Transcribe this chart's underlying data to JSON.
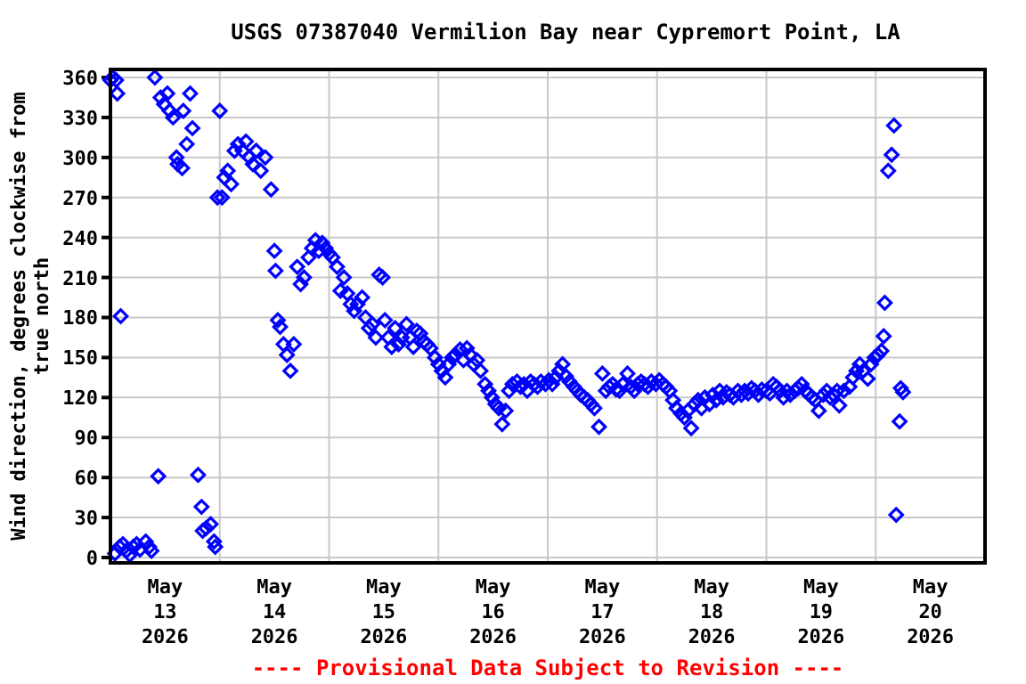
{
  "chart_data": {
    "type": "scatter",
    "title": "USGS 07387040 Vermilion Bay near Cypremort Point, LA",
    "ylabel": "Wind direction, degrees clockwise from\ntrue north",
    "annotations": [
      "---- Provisional Data Subject to Revision ----"
    ],
    "marker": "diamond",
    "grid": true,
    "ylim": [
      -4,
      366
    ],
    "yticks": [
      0,
      30,
      60,
      90,
      120,
      150,
      180,
      210,
      240,
      270,
      300,
      330,
      360
    ],
    "xlim": [
      "2026-05-13T00:00",
      "2026-05-21T00:00"
    ],
    "xticks": [
      {
        "value": "2026-05-13T12:00",
        "label": "May\n13\n2026"
      },
      {
        "value": "2026-05-14T12:00",
        "label": "May\n14\n2026"
      },
      {
        "value": "2026-05-15T12:00",
        "label": "May\n15\n2026"
      },
      {
        "value": "2026-05-16T12:00",
        "label": "May\n16\n2026"
      },
      {
        "value": "2026-05-17T12:00",
        "label": "May\n17\n2026"
      },
      {
        "value": "2026-05-18T12:00",
        "label": "May\n18\n2026"
      },
      {
        "value": "2026-05-19T12:00",
        "label": "May\n19\n2026"
      },
      {
        "value": "2026-05-20T12:00",
        "label": "May\n20\n2026"
      },
      {
        "value": "2026-05-14T00:00",
        "label": null
      },
      {
        "value": "2026-05-15T00:00",
        "label": null
      },
      {
        "value": "2026-05-16T00:00",
        "label": null
      },
      {
        "value": "2026-05-17T00:00",
        "label": null
      },
      {
        "value": "2026-05-18T00:00",
        "label": null
      },
      {
        "value": "2026-05-19T00:00",
        "label": null
      },
      {
        "value": "2026-05-20T00:00",
        "label": null
      }
    ],
    "series": [
      {
        "color": "#0000ff",
        "x": [
          "2026-05-13T00:00",
          "2026-05-13T00:30",
          "2026-05-13T01:15",
          "2026-05-13T01:30",
          "2026-05-13T02:15",
          "2026-05-13T01:00",
          "2026-05-13T02:00",
          "2026-05-13T02:45",
          "2026-05-13T03:30",
          "2026-05-13T04:15",
          "2026-05-13T05:00",
          "2026-05-13T05:45",
          "2026-05-13T06:30",
          "2026-05-13T07:45",
          "2026-05-13T08:30",
          "2026-05-13T09:00",
          "2026-05-13T09:45",
          "2026-05-13T10:30",
          "2026-05-13T11:00",
          "2026-05-13T11:45",
          "2026-05-13T12:30",
          "2026-05-13T13:00",
          "2026-05-13T13:45",
          "2026-05-13T14:30",
          "2026-05-13T14:45",
          "2026-05-13T15:45",
          "2026-05-13T16:00",
          "2026-05-13T16:45",
          "2026-05-13T17:30",
          "2026-05-13T18:00",
          "2026-05-13T19:15",
          "2026-05-13T20:00",
          "2026-05-13T20:15",
          "2026-05-13T21:00",
          "2026-05-13T22:00",
          "2026-05-13T22:45",
          "2026-05-13T23:00",
          "2026-05-13T23:30",
          "2026-05-14T00:00",
          "2026-05-14T00:30",
          "2026-05-14T01:00",
          "2026-05-14T01:45",
          "2026-05-14T02:30",
          "2026-05-14T03:15",
          "2026-05-14T04:00",
          "2026-05-14T05:00",
          "2026-05-14T05:45",
          "2026-05-14T06:30",
          "2026-05-14T07:15",
          "2026-05-14T08:00",
          "2026-05-14T09:00",
          "2026-05-14T10:00",
          "2026-05-14T11:15",
          "2026-05-14T12:00",
          "2026-05-14T12:15",
          "2026-05-14T12:45",
          "2026-05-14T13:15",
          "2026-05-14T14:00",
          "2026-05-14T14:45",
          "2026-05-14T15:30",
          "2026-05-14T16:15",
          "2026-05-14T17:00",
          "2026-05-14T17:45",
          "2026-05-14T18:30",
          "2026-05-14T19:30",
          "2026-05-14T20:15",
          "2026-05-14T21:00",
          "2026-05-14T21:45",
          "2026-05-14T22:30",
          "2026-05-14T23:15",
          "2026-05-15T00:00",
          "2026-05-15T00:45",
          "2026-05-15T01:45",
          "2026-05-15T02:30",
          "2026-05-15T03:15",
          "2026-05-15T04:00",
          "2026-05-15T04:45",
          "2026-05-15T05:30",
          "2026-05-15T06:15",
          "2026-05-15T07:15",
          "2026-05-15T08:00",
          "2026-05-15T08:45",
          "2026-05-15T09:30",
          "2026-05-15T10:15",
          "2026-05-15T11:00",
          "2026-05-15T11:45",
          "2026-05-15T12:15",
          "2026-05-15T13:00",
          "2026-05-15T13:45",
          "2026-05-15T14:30",
          "2026-05-15T15:15",
          "2026-05-15T16:00",
          "2026-05-15T17:00",
          "2026-05-15T17:45",
          "2026-05-15T18:30",
          "2026-05-15T19:15",
          "2026-05-15T20:00",
          "2026-05-15T20:45",
          "2026-05-15T21:30",
          "2026-05-15T22:15",
          "2026-05-15T23:15",
          "2026-05-16T00:00",
          "2026-05-16T00:45",
          "2026-05-16T01:30",
          "2026-05-16T02:15",
          "2026-05-16T03:00",
          "2026-05-16T03:45",
          "2026-05-16T04:45",
          "2026-05-16T05:30",
          "2026-05-16T06:15",
          "2026-05-16T07:00",
          "2026-05-16T07:45",
          "2026-05-16T08:30",
          "2026-05-16T09:15",
          "2026-05-16T10:15",
          "2026-05-16T11:00",
          "2026-05-16T11:45",
          "2026-05-16T12:30",
          "2026-05-16T13:15",
          "2026-05-16T14:00",
          "2026-05-16T14:45",
          "2026-05-16T15:30",
          "2026-05-16T16:15",
          "2026-05-16T17:15",
          "2026-05-16T18:00",
          "2026-05-16T18:45",
          "2026-05-16T19:30",
          "2026-05-16T20:15",
          "2026-05-16T21:00",
          "2026-05-16T21:45",
          "2026-05-16T22:30",
          "2026-05-16T23:30",
          "2026-05-17T00:15",
          "2026-05-17T01:00",
          "2026-05-17T01:45",
          "2026-05-17T02:30",
          "2026-05-17T03:15",
          "2026-05-17T04:00",
          "2026-05-17T04:45",
          "2026-05-17T05:45",
          "2026-05-17T06:30",
          "2026-05-17T07:15",
          "2026-05-17T08:00",
          "2026-05-17T08:45",
          "2026-05-17T09:30",
          "2026-05-17T10:15",
          "2026-05-17T11:15",
          "2026-05-17T12:00",
          "2026-05-17T12:45",
          "2026-05-17T13:30",
          "2026-05-17T14:15",
          "2026-05-17T15:00",
          "2026-05-17T15:45",
          "2026-05-17T16:30",
          "2026-05-17T17:30",
          "2026-05-17T18:15",
          "2026-05-17T19:00",
          "2026-05-17T19:45",
          "2026-05-17T20:30",
          "2026-05-17T21:15",
          "2026-05-17T22:00",
          "2026-05-17T22:45",
          "2026-05-17T23:45",
          "2026-05-18T00:30",
          "2026-05-18T01:15",
          "2026-05-18T02:00",
          "2026-05-18T02:45",
          "2026-05-18T03:30",
          "2026-05-18T04:15",
          "2026-05-18T05:15",
          "2026-05-18T06:00",
          "2026-05-18T06:45",
          "2026-05-18T07:30",
          "2026-05-18T08:15",
          "2026-05-18T09:00",
          "2026-05-18T09:45",
          "2026-05-18T10:30",
          "2026-05-18T11:30",
          "2026-05-18T12:15",
          "2026-05-18T13:00",
          "2026-05-18T13:45",
          "2026-05-18T14:30",
          "2026-05-18T15:15",
          "2026-05-18T16:00",
          "2026-05-18T16:45",
          "2026-05-18T17:45",
          "2026-05-18T18:30",
          "2026-05-18T19:15",
          "2026-05-18T20:00",
          "2026-05-18T20:45",
          "2026-05-18T21:30",
          "2026-05-18T22:15",
          "2026-05-18T23:00",
          "2026-05-19T00:00",
          "2026-05-19T00:45",
          "2026-05-19T01:30",
          "2026-05-19T02:15",
          "2026-05-19T03:00",
          "2026-05-19T03:45",
          "2026-05-19T04:30",
          "2026-05-19T05:15",
          "2026-05-19T06:15",
          "2026-05-19T07:00",
          "2026-05-19T07:45",
          "2026-05-19T08:30",
          "2026-05-19T09:15",
          "2026-05-19T10:00",
          "2026-05-19T10:45",
          "2026-05-19T11:30",
          "2026-05-19T12:30",
          "2026-05-19T13:15",
          "2026-05-19T14:00",
          "2026-05-19T14:45",
          "2026-05-19T15:30",
          "2026-05-19T16:00",
          "2026-05-19T17:00",
          "2026-05-19T18:15",
          "2026-05-19T19:00",
          "2026-05-19T19:45",
          "2026-05-19T20:30",
          "2026-05-19T21:15",
          "2026-05-19T22:15",
          "2026-05-19T23:00",
          "2026-05-19T23:45",
          "2026-05-20T00:30",
          "2026-05-20T01:15",
          "2026-05-20T01:45",
          "2026-05-20T02:00",
          "2026-05-20T02:45",
          "2026-05-20T03:30",
          "2026-05-20T04:00",
          "2026-05-20T04:30",
          "2026-05-20T05:15",
          "2026-05-20T05:30",
          "2026-05-20T06:00"
        ],
        "values": [
          358,
          360,
          358,
          348,
          181,
          3,
          8,
          10,
          5,
          2,
          8,
          10,
          6,
          12,
          8,
          5,
          360,
          61,
          345,
          340,
          348,
          335,
          330,
          300,
          295,
          292,
          335,
          310,
          348,
          322,
          62,
          38,
          20,
          22,
          25,
          12,
          8,
          270,
          335,
          270,
          285,
          290,
          280,
          305,
          310,
          305,
          312,
          300,
          295,
          305,
          290,
          300,
          276,
          230,
          215,
          178,
          173,
          160,
          152,
          140,
          160,
          218,
          205,
          210,
          225,
          232,
          238,
          230,
          236,
          232,
          228,
          225,
          218,
          200,
          210,
          198,
          190,
          185,
          190,
          195,
          180,
          172,
          175,
          165,
          212,
          210,
          178,
          165,
          158,
          172,
          160,
          165,
          175,
          165,
          158,
          170,
          168,
          162,
          160,
          157,
          150,
          145,
          140,
          135,
          145,
          150,
          152,
          156,
          148,
          157,
          152,
          145,
          148,
          140,
          130,
          125,
          120,
          115,
          112,
          100,
          110,
          125,
          130,
          132,
          128,
          130,
          125,
          132,
          130,
          128,
          132,
          130,
          133,
          130,
          135,
          140,
          145,
          136,
          132,
          128,
          125,
          122,
          120,
          118,
          115,
          112,
          98,
          138,
          125,
          128,
          130,
          126,
          125,
          130,
          138,
          128,
          125,
          130,
          132,
          130,
          128,
          132,
          130,
          133,
          130,
          128,
          125,
          118,
          112,
          108,
          105,
          110,
          97,
          115,
          118,
          112,
          120,
          115,
          122,
          118,
          125,
          120,
          124,
          122,
          120,
          125,
          122,
          125,
          123,
          127,
          125,
          122,
          126,
          125,
          123,
          130,
          128,
          125,
          120,
          125,
          122,
          125,
          127,
          130,
          125,
          123,
          120,
          118,
          110,
          122,
          125,
          120,
          122,
          125,
          114,
          125,
          128,
          135,
          140,
          145,
          140,
          134,
          145,
          150,
          152,
          155,
          166,
          191,
          290,
          302,
          324,
          32,
          102,
          127,
          124
        ]
      }
    ]
  }
}
